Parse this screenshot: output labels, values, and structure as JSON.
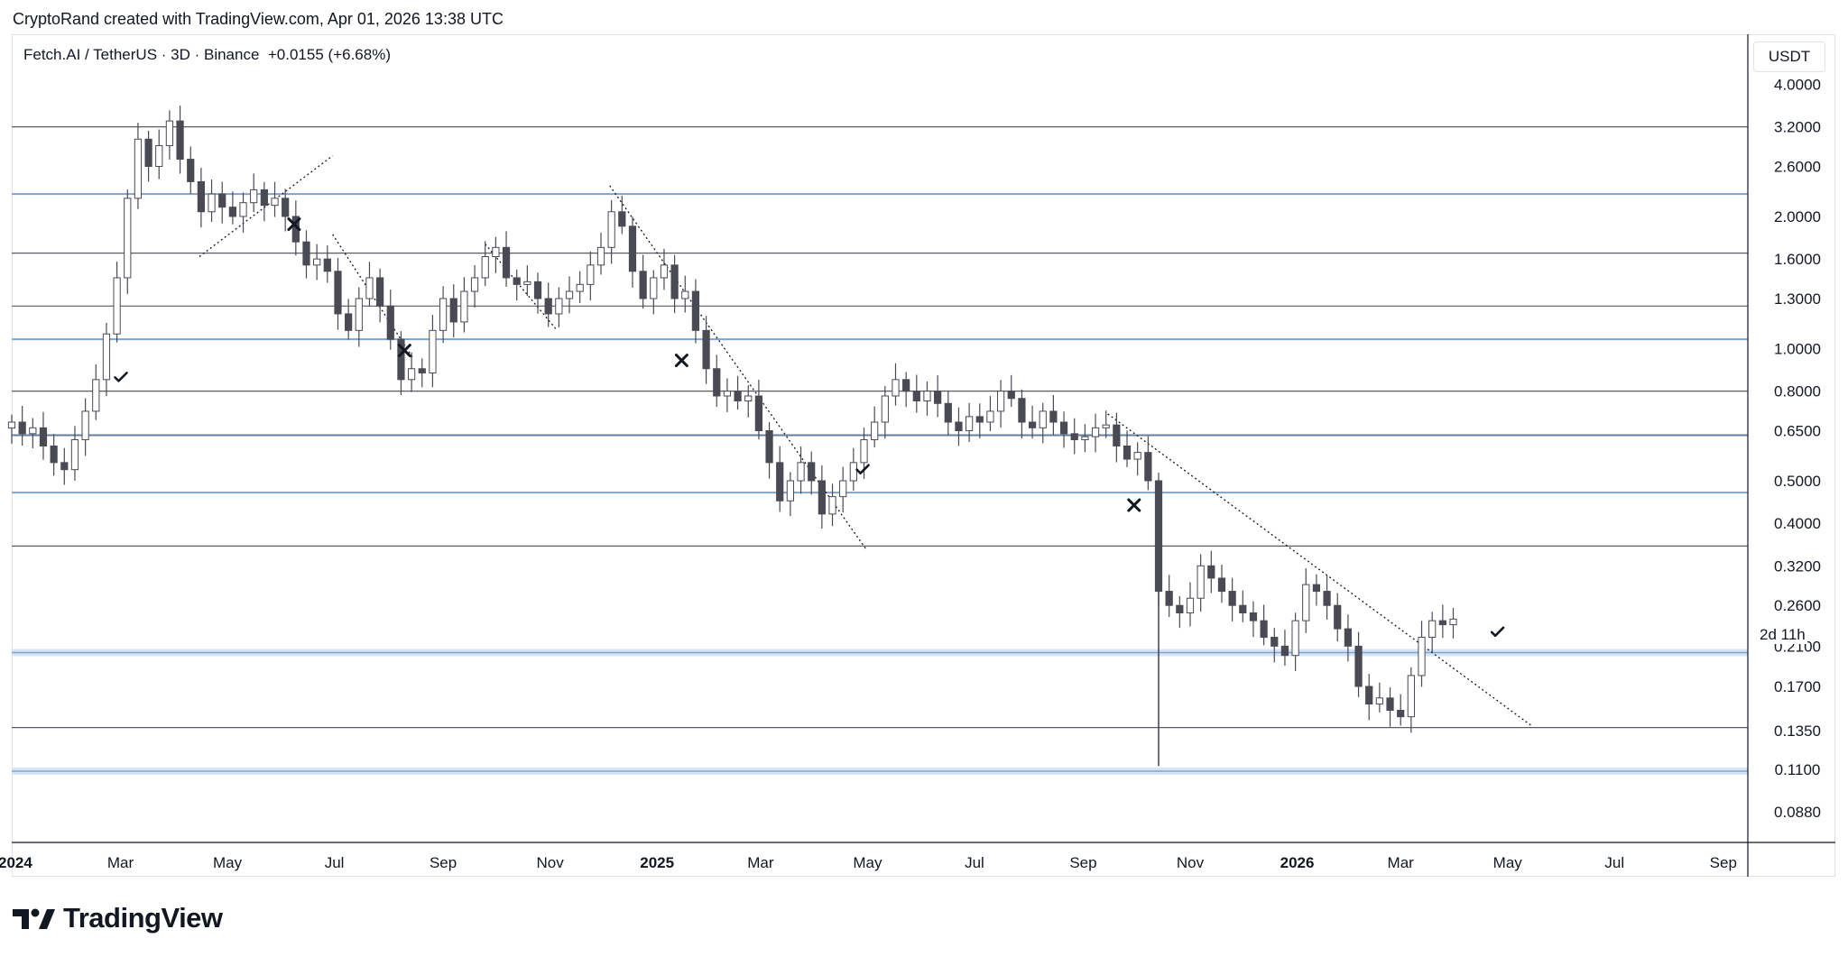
{
  "header": {
    "credit": "CryptoRand created with TradingView.com, Apr 01, 2026 13:38 UTC",
    "symbol": "Fetch.AI / TetherUS · 3D · Binance",
    "change": "+0.0155 (+6.68%)"
  },
  "price_axis": {
    "currency_button": "USDT",
    "countdown": "2d 11h"
  },
  "brand": {
    "name": "TradingView",
    "icon": "tradingview-logo-icon"
  },
  "colors": {
    "candle_body": "#4a4a54",
    "candle_up": "#ffffff",
    "level_gray": "#5b5b66",
    "level_blue": "#7fa3d1",
    "level_blue_band": "#d6e4f5"
  },
  "chart_data": {
    "type": "candlestick",
    "title": "",
    "y_scale": "log",
    "ylim": [
      0.075,
      5.2
    ],
    "y_ticks": [
      "4.0000",
      "3.2000",
      "2.6000",
      "2.0000",
      "1.6000",
      "1.3000",
      "1.0000",
      "0.8000",
      "0.6500",
      "0.5000",
      "0.4000",
      "0.3200",
      "0.2600",
      "0.2100",
      "0.1700",
      "0.1350",
      "0.1100",
      "0.0880"
    ],
    "x_range": [
      "2023-12-30",
      "2026-09-15"
    ],
    "x_ticks": [
      {
        "label": "2024",
        "date": "2024-01-01",
        "bold": true
      },
      {
        "label": "Mar",
        "date": "2024-03-01",
        "bold": false
      },
      {
        "label": "May",
        "date": "2024-05-01",
        "bold": false
      },
      {
        "label": "Jul",
        "date": "2024-07-01",
        "bold": false
      },
      {
        "label": "Sep",
        "date": "2024-09-01",
        "bold": false
      },
      {
        "label": "Nov",
        "date": "2024-11-01",
        "bold": false
      },
      {
        "label": "2025",
        "date": "2025-01-01",
        "bold": true
      },
      {
        "label": "Mar",
        "date": "2025-03-01",
        "bold": false
      },
      {
        "label": "May",
        "date": "2025-05-01",
        "bold": false
      },
      {
        "label": "Jul",
        "date": "2025-07-01",
        "bold": false
      },
      {
        "label": "Sep",
        "date": "2025-09-01",
        "bold": false
      },
      {
        "label": "Nov",
        "date": "2025-11-01",
        "bold": false
      },
      {
        "label": "2026",
        "date": "2026-01-01",
        "bold": true
      },
      {
        "label": "Mar",
        "date": "2026-03-01",
        "bold": false
      },
      {
        "label": "May",
        "date": "2026-05-01",
        "bold": false
      },
      {
        "label": "Jul",
        "date": "2026-07-01",
        "bold": false
      },
      {
        "label": "Sep",
        "date": "2026-09-01",
        "bold": false
      }
    ],
    "horizontal_levels": [
      {
        "price": 3.2,
        "style": "gray"
      },
      {
        "price": 2.25,
        "style": "blue"
      },
      {
        "price": 1.65,
        "style": "gray"
      },
      {
        "price": 1.25,
        "style": "gray"
      },
      {
        "price": 1.05,
        "style": "blue"
      },
      {
        "price": 0.8,
        "style": "gray"
      },
      {
        "price": 0.635,
        "style": "blue-dark"
      },
      {
        "price": 0.47,
        "style": "blue"
      },
      {
        "price": 0.355,
        "style": "gray"
      },
      {
        "price": 0.203,
        "style": "blue-band"
      },
      {
        "price": 0.137,
        "style": "gray"
      },
      {
        "price": 0.109,
        "style": "blue-band"
      }
    ],
    "trendlines": [
      {
        "from": [
          "2024-04-15",
          1.62
        ],
        "to": [
          "2024-06-30",
          2.75
        ]
      },
      {
        "from": [
          "2024-06-30",
          1.82
        ],
        "to": [
          "2024-08-15",
          0.95
        ]
      },
      {
        "from": [
          "2024-09-25",
          1.73
        ],
        "to": [
          "2024-11-05",
          1.1
        ]
      },
      {
        "from": [
          "2024-12-05",
          2.35
        ],
        "to": [
          "2025-04-30",
          0.35
        ]
      },
      {
        "from": [
          "2025-09-15",
          0.71
        ],
        "to": [
          "2026-05-15",
          0.138
        ]
      }
    ],
    "annotations": [
      {
        "type": "check",
        "date": "2024-03-01",
        "price": 0.86
      },
      {
        "type": "cross",
        "date": "2024-06-08",
        "price": 1.92
      },
      {
        "type": "cross",
        "date": "2024-08-10",
        "price": 0.99
      },
      {
        "type": "cross",
        "date": "2025-01-15",
        "price": 0.94
      },
      {
        "type": "check",
        "date": "2025-04-28",
        "price": 0.53
      },
      {
        "type": "cross",
        "date": "2025-09-30",
        "price": 0.44
      },
      {
        "type": "check",
        "date": "2026-04-25",
        "price": 0.226
      }
    ],
    "series": [
      {
        "date": "2023-12-30",
        "close": 0.68
      },
      {
        "date": "2024-01-05",
        "close": 0.64
      },
      {
        "date": "2024-01-11",
        "close": 0.66
      },
      {
        "date": "2024-01-17",
        "close": 0.6
      },
      {
        "date": "2024-01-23",
        "close": 0.55
      },
      {
        "date": "2024-01-29",
        "close": 0.53
      },
      {
        "date": "2024-02-04",
        "close": 0.62
      },
      {
        "date": "2024-02-10",
        "close": 0.72
      },
      {
        "date": "2024-02-16",
        "close": 0.85
      },
      {
        "date": "2024-02-22",
        "close": 1.08
      },
      {
        "date": "2024-02-28",
        "close": 1.45
      },
      {
        "date": "2024-03-05",
        "close": 2.2
      },
      {
        "date": "2024-03-11",
        "close": 3.0
      },
      {
        "date": "2024-03-17",
        "close": 2.6
      },
      {
        "date": "2024-03-23",
        "close": 2.9
      },
      {
        "date": "2024-03-29",
        "close": 3.3
      },
      {
        "date": "2024-04-04",
        "close": 2.7
      },
      {
        "date": "2024-04-10",
        "close": 2.4
      },
      {
        "date": "2024-04-16",
        "close": 2.05
      },
      {
        "date": "2024-04-22",
        "close": 2.25
      },
      {
        "date": "2024-04-28",
        "close": 2.1
      },
      {
        "date": "2024-05-04",
        "close": 2.0
      },
      {
        "date": "2024-05-10",
        "close": 2.15
      },
      {
        "date": "2024-05-16",
        "close": 2.3
      },
      {
        "date": "2024-05-22",
        "close": 2.12
      },
      {
        "date": "2024-05-28",
        "close": 2.2
      },
      {
        "date": "2024-06-03",
        "close": 2.0
      },
      {
        "date": "2024-06-09",
        "close": 1.75
      },
      {
        "date": "2024-06-15",
        "close": 1.55
      },
      {
        "date": "2024-06-21",
        "close": 1.6
      },
      {
        "date": "2024-06-27",
        "close": 1.5
      },
      {
        "date": "2024-07-03",
        "close": 1.2
      },
      {
        "date": "2024-07-09",
        "close": 1.1
      },
      {
        "date": "2024-07-15",
        "close": 1.3
      },
      {
        "date": "2024-07-21",
        "close": 1.45
      },
      {
        "date": "2024-07-27",
        "close": 1.25
      },
      {
        "date": "2024-08-02",
        "close": 1.05
      },
      {
        "date": "2024-08-08",
        "close": 0.85
      },
      {
        "date": "2024-08-14",
        "close": 0.9
      },
      {
        "date": "2024-08-20",
        "close": 0.88
      },
      {
        "date": "2024-08-26",
        "close": 1.1
      },
      {
        "date": "2024-09-01",
        "close": 1.3
      },
      {
        "date": "2024-09-07",
        "close": 1.15
      },
      {
        "date": "2024-09-13",
        "close": 1.35
      },
      {
        "date": "2024-09-19",
        "close": 1.45
      },
      {
        "date": "2024-09-25",
        "close": 1.62
      },
      {
        "date": "2024-10-01",
        "close": 1.7
      },
      {
        "date": "2024-10-07",
        "close": 1.45
      },
      {
        "date": "2024-10-13",
        "close": 1.4
      },
      {
        "date": "2024-10-19",
        "close": 1.42
      },
      {
        "date": "2024-10-25",
        "close": 1.3
      },
      {
        "date": "2024-10-31",
        "close": 1.2
      },
      {
        "date": "2024-11-06",
        "close": 1.3
      },
      {
        "date": "2024-11-12",
        "close": 1.35
      },
      {
        "date": "2024-11-18",
        "close": 1.4
      },
      {
        "date": "2024-11-24",
        "close": 1.55
      },
      {
        "date": "2024-11-30",
        "close": 1.7
      },
      {
        "date": "2024-12-06",
        "close": 2.05
      },
      {
        "date": "2024-12-12",
        "close": 1.9
      },
      {
        "date": "2024-12-18",
        "close": 1.5
      },
      {
        "date": "2024-12-24",
        "close": 1.3
      },
      {
        "date": "2024-12-30",
        "close": 1.45
      },
      {
        "date": "2025-01-05",
        "close": 1.55
      },
      {
        "date": "2025-01-11",
        "close": 1.3
      },
      {
        "date": "2025-01-17",
        "close": 1.35
      },
      {
        "date": "2025-01-23",
        "close": 1.1
      },
      {
        "date": "2025-01-29",
        "close": 0.9
      },
      {
        "date": "2025-02-04",
        "close": 0.78
      },
      {
        "date": "2025-02-10",
        "close": 0.8
      },
      {
        "date": "2025-02-16",
        "close": 0.76
      },
      {
        "date": "2025-02-22",
        "close": 0.78
      },
      {
        "date": "2025-02-28",
        "close": 0.65
      },
      {
        "date": "2025-03-06",
        "close": 0.55
      },
      {
        "date": "2025-03-12",
        "close": 0.45
      },
      {
        "date": "2025-03-18",
        "close": 0.5
      },
      {
        "date": "2025-03-24",
        "close": 0.55
      },
      {
        "date": "2025-03-30",
        "close": 0.5
      },
      {
        "date": "2025-04-05",
        "close": 0.42
      },
      {
        "date": "2025-04-11",
        "close": 0.46
      },
      {
        "date": "2025-04-17",
        "close": 0.5
      },
      {
        "date": "2025-04-23",
        "close": 0.55
      },
      {
        "date": "2025-04-29",
        "close": 0.62
      },
      {
        "date": "2025-05-05",
        "close": 0.68
      },
      {
        "date": "2025-05-11",
        "close": 0.78
      },
      {
        "date": "2025-05-17",
        "close": 0.85
      },
      {
        "date": "2025-05-23",
        "close": 0.8
      },
      {
        "date": "2025-05-29",
        "close": 0.76
      },
      {
        "date": "2025-06-04",
        "close": 0.8
      },
      {
        "date": "2025-06-10",
        "close": 0.75
      },
      {
        "date": "2025-06-16",
        "close": 0.68
      },
      {
        "date": "2025-06-22",
        "close": 0.65
      },
      {
        "date": "2025-06-28",
        "close": 0.7
      },
      {
        "date": "2025-07-04",
        "close": 0.68
      },
      {
        "date": "2025-07-10",
        "close": 0.72
      },
      {
        "date": "2025-07-16",
        "close": 0.8
      },
      {
        "date": "2025-07-22",
        "close": 0.77
      },
      {
        "date": "2025-07-28",
        "close": 0.68
      },
      {
        "date": "2025-08-03",
        "close": 0.66
      },
      {
        "date": "2025-08-09",
        "close": 0.72
      },
      {
        "date": "2025-08-15",
        "close": 0.68
      },
      {
        "date": "2025-08-21",
        "close": 0.64
      },
      {
        "date": "2025-08-27",
        "close": 0.62
      },
      {
        "date": "2025-09-02",
        "close": 0.63
      },
      {
        "date": "2025-09-08",
        "close": 0.66
      },
      {
        "date": "2025-09-14",
        "close": 0.67
      },
      {
        "date": "2025-09-20",
        "close": 0.6
      },
      {
        "date": "2025-09-26",
        "close": 0.56
      },
      {
        "date": "2025-10-02",
        "close": 0.58
      },
      {
        "date": "2025-10-08",
        "close": 0.5
      },
      {
        "date": "2025-10-14",
        "close": 0.28
      },
      {
        "date": "2025-10-20",
        "close": 0.26
      },
      {
        "date": "2025-10-26",
        "close": 0.25
      },
      {
        "date": "2025-11-01",
        "close": 0.27
      },
      {
        "date": "2025-11-07",
        "close": 0.32
      },
      {
        "date": "2025-11-13",
        "close": 0.3
      },
      {
        "date": "2025-11-19",
        "close": 0.28
      },
      {
        "date": "2025-11-25",
        "close": 0.26
      },
      {
        "date": "2025-12-01",
        "close": 0.25
      },
      {
        "date": "2025-12-07",
        "close": 0.24
      },
      {
        "date": "2025-12-13",
        "close": 0.22
      },
      {
        "date": "2025-12-19",
        "close": 0.21
      },
      {
        "date": "2025-12-25",
        "close": 0.2
      },
      {
        "date": "2025-12-31",
        "close": 0.24
      },
      {
        "date": "2026-01-06",
        "close": 0.29
      },
      {
        "date": "2026-01-12",
        "close": 0.28
      },
      {
        "date": "2026-01-18",
        "close": 0.26
      },
      {
        "date": "2026-01-24",
        "close": 0.23
      },
      {
        "date": "2026-01-30",
        "close": 0.21
      },
      {
        "date": "2026-02-05",
        "close": 0.17
      },
      {
        "date": "2026-02-11",
        "close": 0.155
      },
      {
        "date": "2026-02-17",
        "close": 0.16
      },
      {
        "date": "2026-02-23",
        "close": 0.15
      },
      {
        "date": "2026-03-01",
        "close": 0.145
      },
      {
        "date": "2026-03-07",
        "close": 0.18
      },
      {
        "date": "2026-03-13",
        "close": 0.22
      },
      {
        "date": "2026-03-19",
        "close": 0.24
      },
      {
        "date": "2026-03-25",
        "close": 0.235
      },
      {
        "date": "2026-03-31",
        "close": 0.242
      }
    ]
  }
}
